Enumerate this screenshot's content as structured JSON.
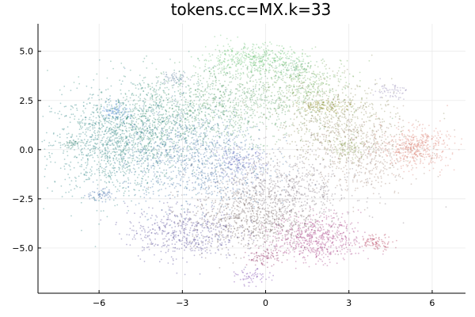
{
  "chart_data": {
    "type": "scatter",
    "title": "tokens.cc=MX.k=33",
    "xlabel": "",
    "ylabel": "",
    "xlim": [
      -8.2,
      7.2
    ],
    "ylim": [
      -7.3,
      6.4
    ],
    "xticks": [
      -6,
      -3,
      0,
      3,
      6
    ],
    "xtick_labels": [
      "−6",
      "−3",
      "0",
      "3",
      "6"
    ],
    "yticks": [
      -5,
      -2.5,
      0,
      2.5,
      5
    ],
    "ytick_labels": [
      "−5.0",
      "−2.5",
      "0.0",
      "2.5",
      "5.0"
    ],
    "grid": true,
    "legend": "none",
    "clusters": [
      {
        "cx": -5.5,
        "cy": 0.3,
        "sx": 1.1,
        "sy": 1.3,
        "n": 1100,
        "color": "#1f7a7a"
      },
      {
        "cx": -3.8,
        "cy": 1.5,
        "sx": 1.2,
        "sy": 1.2,
        "n": 900,
        "color": "#2f8a6f"
      },
      {
        "cx": -2.5,
        "cy": -0.5,
        "sx": 1.3,
        "sy": 1.3,
        "n": 1000,
        "color": "#3d6fa3"
      },
      {
        "cx": -1.0,
        "cy": 2.5,
        "sx": 1.3,
        "sy": 1.0,
        "n": 800,
        "color": "#4f9a5f"
      },
      {
        "cx": -0.5,
        "cy": 4.6,
        "sx": 0.9,
        "sy": 0.4,
        "n": 400,
        "color": "#5fbf6a"
      },
      {
        "cx": 1.5,
        "cy": 3.3,
        "sx": 0.9,
        "sy": 0.7,
        "n": 350,
        "color": "#6aa84f"
      },
      {
        "cx": 2.5,
        "cy": 1.5,
        "sx": 1.1,
        "sy": 1.0,
        "n": 600,
        "color": "#8a8a55"
      },
      {
        "cx": 3.5,
        "cy": -0.2,
        "sx": 1.0,
        "sy": 1.0,
        "n": 500,
        "color": "#9a7a6a"
      },
      {
        "cx": 5.4,
        "cy": 0.1,
        "sx": 0.6,
        "sy": 0.5,
        "n": 450,
        "color": "#d97b6c"
      },
      {
        "cx": 1.8,
        "cy": -4.5,
        "sx": 0.8,
        "sy": 0.6,
        "n": 600,
        "color": "#a0307a"
      },
      {
        "cx": -0.5,
        "cy": -3.6,
        "sx": 1.1,
        "sy": 0.8,
        "n": 700,
        "color": "#6a5a55"
      },
      {
        "cx": -3.0,
        "cy": -4.2,
        "sx": 1.0,
        "sy": 0.7,
        "n": 500,
        "color": "#4a3f90"
      },
      {
        "cx": 0.5,
        "cy": -2.0,
        "sx": 1.4,
        "sy": 1.0,
        "n": 800,
        "color": "#7a6f7a"
      },
      {
        "cx": -0.1,
        "cy": -5.5,
        "sx": 0.3,
        "sy": 0.2,
        "n": 80,
        "color": "#8a1f5a"
      },
      {
        "cx": -0.5,
        "cy": -6.5,
        "sx": 0.3,
        "sy": 0.2,
        "n": 60,
        "color": "#6a2fa0"
      },
      {
        "cx": 4.0,
        "cy": -4.7,
        "sx": 0.3,
        "sy": 0.2,
        "n": 90,
        "color": "#b03050"
      },
      {
        "cx": 2.2,
        "cy": 2.2,
        "sx": 0.5,
        "sy": 0.15,
        "n": 120,
        "color": "#8a8a20"
      },
      {
        "cx": -5.4,
        "cy": 2.0,
        "sx": 0.25,
        "sy": 0.25,
        "n": 80,
        "color": "#3f7fd0"
      },
      {
        "cx": -3.3,
        "cy": 3.6,
        "sx": 0.25,
        "sy": 0.2,
        "n": 60,
        "color": "#5a7a9a"
      },
      {
        "cx": 4.5,
        "cy": 3.0,
        "sx": 0.3,
        "sy": 0.2,
        "n": 60,
        "color": "#8a7fb0"
      },
      {
        "cx": -7.0,
        "cy": 0.3,
        "sx": 0.2,
        "sy": 0.1,
        "n": 40,
        "color": "#2a7a6a"
      },
      {
        "cx": -6.0,
        "cy": -2.3,
        "sx": 0.3,
        "sy": 0.15,
        "n": 60,
        "color": "#2f5fa0"
      },
      {
        "cx": -1.0,
        "cy": -0.7,
        "sx": 0.5,
        "sy": 0.4,
        "n": 150,
        "color": "#5a5fc0"
      },
      {
        "cx": 3.0,
        "cy": 0.1,
        "sx": 0.4,
        "sy": 0.3,
        "n": 100,
        "color": "#8aa050"
      },
      {
        "cx": 1.0,
        "cy": 4.2,
        "sx": 0.4,
        "sy": 0.3,
        "n": 80,
        "color": "#4faa70"
      }
    ]
  }
}
